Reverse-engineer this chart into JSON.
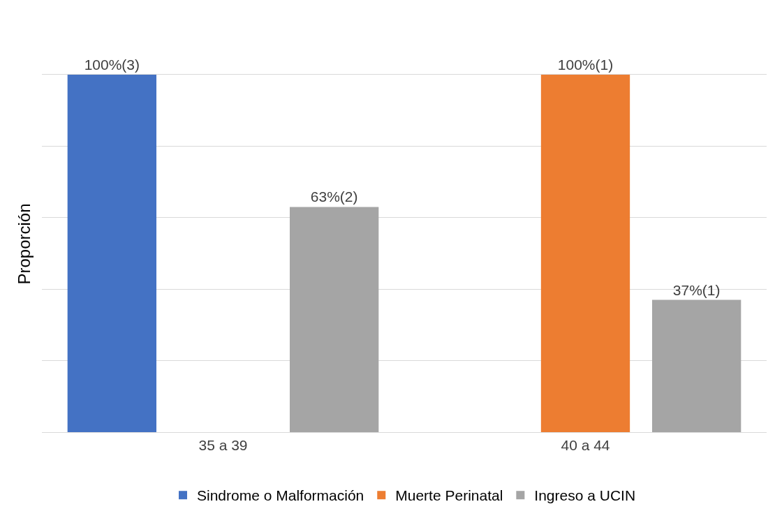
{
  "chart_data": {
    "type": "bar",
    "ylabel": "Proporción",
    "categories": [
      "35 a 39",
      "40 a 44"
    ],
    "series": [
      {
        "name": "Sindrome o Malformación",
        "color": "#4472c4",
        "values": [
          100,
          null
        ],
        "value_labels": [
          "100%(3)",
          null
        ]
      },
      {
        "name": "Muerte Perinatal",
        "color": "#ed7d31",
        "values": [
          null,
          100
        ],
        "value_labels": [
          null,
          "100%(1)"
        ]
      },
      {
        "name": "Ingreso a UCIN",
        "color": "#a5a5a5",
        "values": [
          63,
          37
        ],
        "value_labels": [
          "63%(2)",
          "37%(1)"
        ]
      }
    ],
    "tick_labels": "x",
    "grid": "y",
    "legend": "bottom"
  }
}
